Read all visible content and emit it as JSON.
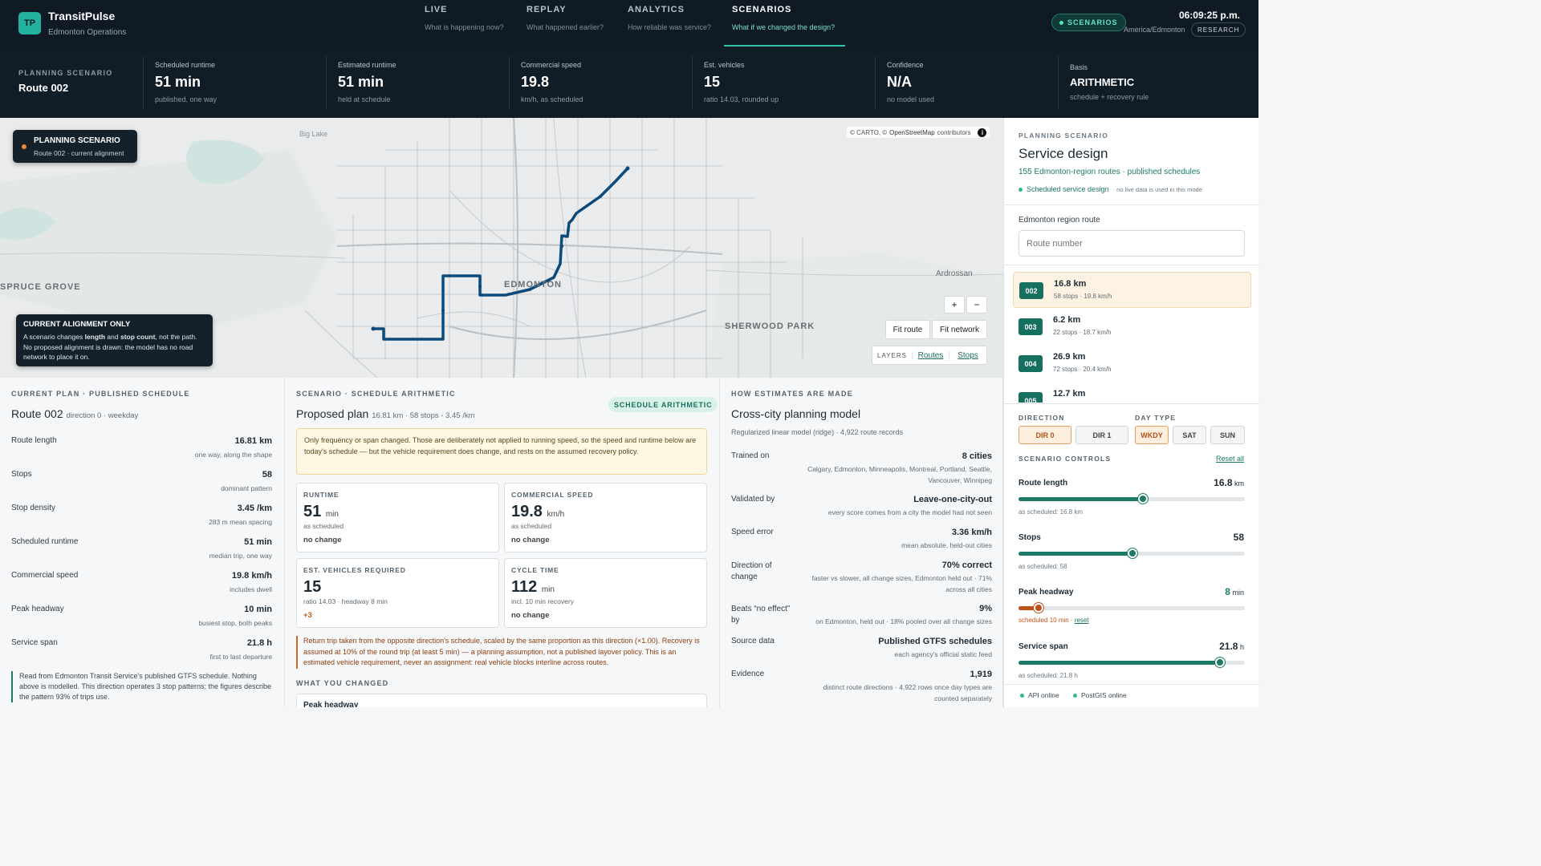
{
  "brand": {
    "logo": "TP",
    "name": "TransitPulse",
    "subtitle": "Edmonton Operations"
  },
  "nav": [
    {
      "label": "LIVE",
      "sub": "What is happening now?"
    },
    {
      "label": "REPLAY",
      "sub": "What happened earlier?"
    },
    {
      "label": "ANALYTICS",
      "sub": "How reliable was service?"
    },
    {
      "label": "SCENARIOS",
      "sub": "What if we changed the design?"
    }
  ],
  "header": {
    "mode": "SCENARIOS",
    "time": "06:09:25 p.m.",
    "timezone": "America/Edmonton",
    "research": "RESEARCH"
  },
  "kpis": {
    "scenario_label": "PLANNING SCENARIO",
    "scenario_value": "Route 002",
    "items": [
      {
        "label": "Scheduled runtime",
        "value": "51 min",
        "sub": "published, one way"
      },
      {
        "label": "Estimated runtime",
        "value": "51 min",
        "sub": "held at schedule"
      },
      {
        "label": "Commercial speed",
        "value": "19.8",
        "sub": "km/h, as scheduled"
      },
      {
        "label": "Est. vehicles",
        "value": "15",
        "sub": "ratio 14.03, rounded up"
      },
      {
        "label": "Confidence",
        "value": "N/A",
        "sub": "no model used"
      },
      {
        "label": "Basis",
        "value": "ARITHMETIC",
        "sub": "schedule + recovery rule"
      }
    ]
  },
  "map": {
    "badge_title": "PLANNING SCENARIO",
    "badge_sub": "Route 002 · current alignment",
    "attribution_a": "© CARTO, © ",
    "attribution_b": "OpenStreetMap",
    "attribution_c": " contributors",
    "info_icon": "i",
    "labels": {
      "spruce": "SPRUCE GROVE",
      "edmonton": "EDMONTON",
      "sherwood": "SHERWOOD PARK",
      "ardrossan": "Ardrossan",
      "biglake": "Big Lake"
    },
    "note_title": "CURRENT ALIGNMENT ONLY",
    "note_a": "A scenario changes ",
    "note_b": "length",
    "note_c": " and ",
    "note_d": "stop count",
    "note_e": ", not the path. No proposed alignment is drawn: the model has no road network to place it on.",
    "zoom_in": "+",
    "zoom_out": "−",
    "fit_route": "Fit route",
    "fit_network": "Fit network",
    "layers": "LAYERS",
    "routes": "Routes",
    "stops": "Stops",
    "colors": {
      "route": "#0b4a7a",
      "water": "#cfe3e0",
      "road": "#c4c9cc"
    }
  },
  "current": {
    "header": "CURRENT PLAN · PUBLISHED SCHEDULE",
    "title": "Route 002",
    "title_sub": "direction 0 · weekday",
    "rows": [
      {
        "label": "Route length",
        "value": "16.81 km",
        "sub": "one way, along the shape"
      },
      {
        "label": "Stops",
        "value": "58",
        "sub": "dominant pattern"
      },
      {
        "label": "Stop density",
        "value": "3.45 /km",
        "sub": "283 m mean spacing"
      },
      {
        "label": "Scheduled runtime",
        "value": "51 min",
        "sub": "median trip, one way"
      },
      {
        "label": "Commercial speed",
        "value": "19.8 km/h",
        "sub": "includes dwell"
      },
      {
        "label": "Peak headway",
        "value": "10 min",
        "sub": "busiest stop, both peaks"
      },
      {
        "label": "Service span",
        "value": "21.8 h",
        "sub": "first to last departure"
      }
    ],
    "note": "Read from Edmonton Transit Service's published GTFS schedule. Nothing above is modelled. This direction operates 3 stop patterns; the figures describe the pattern 93% of trips use."
  },
  "scenario": {
    "header": "SCENARIO · SCHEDULE ARITHMETIC",
    "badge": "SCHEDULE ARITHMETIC",
    "title": "Proposed plan",
    "title_sub": "16.81 km · 58 stops · 3.45 /km",
    "warning": "Only frequency or span changed. Those are deliberately not applied to running speed, so the speed and runtime below are today's schedule — but the vehicle requirement does change, and rests on the assumed recovery policy.",
    "cards": [
      {
        "label": "RUNTIME",
        "value": "51",
        "unit": "min",
        "sub": "as scheduled",
        "delta": "no change"
      },
      {
        "label": "COMMERCIAL SPEED",
        "value": "19.8",
        "unit": "km/h",
        "sub": "as scheduled",
        "delta": "no change"
      },
      {
        "label": "EST. VEHICLES REQUIRED",
        "value": "15",
        "unit": "",
        "sub": "ratio 14.03 · headway 8 min",
        "delta": "+3"
      },
      {
        "label": "CYCLE TIME",
        "value": "112",
        "unit": "min",
        "sub": "incl. 10 min recovery",
        "delta": "no change"
      }
    ],
    "footnote": "Return trip taken from the opposite direction's schedule, scaled by the same proportion as this direction (×1.00). Recovery is assumed at 10% of the round trip (at least 5 min) — a planning assumption, not a published layover policy. This is an estimated vehicle requirement, never an assignment: real vehicle blocks interline across routes.",
    "changed_header": "WHAT YOU CHANGED",
    "changed_item": "Peak headway"
  },
  "model": {
    "header": "HOW ESTIMATES ARE MADE",
    "title": "Cross-city planning model",
    "sub": "Regularized linear model (ridge) · 4,922 route records",
    "rows": [
      {
        "label": "Trained on",
        "value": "8 cities",
        "sub": "Calgary, Edmonton, Minneapolis, Montreal, Portland, Seattle, Vancouver, Winnipeg"
      },
      {
        "label": "Validated by",
        "value": "Leave-one-city-out",
        "sub": "every score comes from a city the model had not seen"
      },
      {
        "label": "Speed error",
        "value": "3.36 km/h",
        "sub": "mean absolute, held-out cities"
      },
      {
        "label": "Direction of change",
        "value": "70% correct",
        "sub": "faster vs slower, all change sizes, Edmonton held out · 71% across all cities"
      },
      {
        "label": "Beats “no effect” by",
        "value": "9%",
        "sub": "on Edmonton, held out · 18% pooled over all change sizes"
      },
      {
        "label": "Source data",
        "value": "Published GTFS schedules",
        "sub": "each agency's official static feed"
      },
      {
        "label": "Evidence",
        "value": "1,919",
        "sub": "distinct route directions · 4,922 rows once day types are counted separately"
      }
    ]
  },
  "sidebar": {
    "eyebrow": "PLANNING SCENARIO",
    "title": "Service design",
    "sub": "155 Edmonton-region routes · published schedules",
    "status_a": "Scheduled service design",
    "status_b": "· no live data is used in this mode",
    "route_label": "Edmonton region route",
    "route_placeholder": "Route number",
    "routes": [
      {
        "id": "002",
        "km": "16.8 km",
        "stats": "58 stops · 19.8 km/h"
      },
      {
        "id": "003",
        "km": "6.2 km",
        "stats": "22 stops · 18.7 km/h"
      },
      {
        "id": "004",
        "km": "26.9 km",
        "stats": "72 stops · 20.4 km/h"
      },
      {
        "id": "005",
        "km": "12.7 km",
        "stats": ""
      }
    ],
    "direction_label": "DIRECTION",
    "dir0": "DIR 0",
    "dir1": "DIR 1",
    "daytype_label": "DAY TYPE",
    "wkdy": "WKDY",
    "sat": "SAT",
    "sun": "SUN",
    "controls_label": "SCENARIO CONTROLS",
    "reset_all": "Reset all",
    "sliders": [
      {
        "label": "Route length",
        "value": "16.8",
        "unit": " km",
        "hint": "as scheduled: 16.8 km",
        "level": 0.55
      },
      {
        "label": "Stops",
        "value": "58",
        "unit": "",
        "hint": "as scheduled: 58",
        "level": 0.505
      },
      {
        "label": "Peak headway",
        "value": "8",
        "unit": " min",
        "hint_a": "scheduled 10 min · ",
        "hint_b": "reset",
        "level": 0.09
      },
      {
        "label": "Service span",
        "value": "21.8",
        "unit": " h",
        "hint": "as scheduled: 21.8 h",
        "level": 0.89
      }
    ],
    "api": "API online",
    "postgis": "PostGIS online"
  }
}
